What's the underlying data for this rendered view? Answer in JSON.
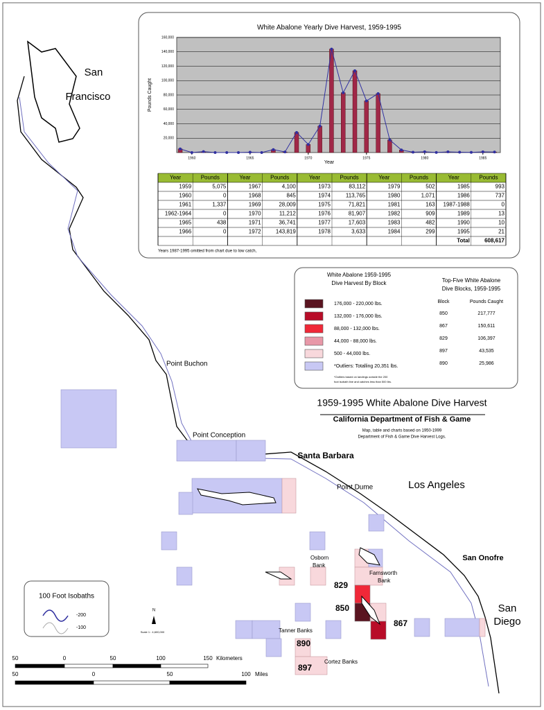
{
  "chart_data": {
    "type": "bar",
    "title": "White Abalone Yearly Dive Harvest, 1959-1995",
    "x_label": "Year",
    "y_label": "Pounds Caught",
    "x": [
      1959,
      1960,
      1961,
      1962,
      1963,
      1964,
      1965,
      1966,
      1967,
      1968,
      1969,
      1970,
      1971,
      1972,
      1973,
      1974,
      1975,
      1976,
      1977,
      1978,
      1979,
      1980,
      1981,
      1982,
      1983,
      1984,
      1985,
      1986
    ],
    "values": [
      5075,
      0,
      1337,
      0,
      0,
      0,
      438,
      0,
      4100,
      845,
      28009,
      11212,
      36741,
      143819,
      83112,
      113765,
      71821,
      81907,
      17603,
      3633,
      502,
      1071,
      163,
      909,
      482,
      299,
      993,
      737
    ],
    "color": "#a02848",
    "line_color": "#3030a0",
    "plot_background": "#c0c0c0",
    "xlim": [
      1958.7,
      1986.5
    ],
    "xticks": [
      1960,
      1965,
      1970,
      1975,
      1980,
      1985
    ],
    "ylim": [
      0,
      160000
    ],
    "yticks": [
      {
        "value": 20000,
        "label": "20,000"
      },
      {
        "value": 40000,
        "label": "40,000"
      },
      {
        "value": 60000,
        "label": "60,000"
      },
      {
        "value": 80000,
        "label": "80,000"
      },
      {
        "value": 100000,
        "label": "100,000"
      },
      {
        "value": 120000,
        "label": "120,000"
      },
      {
        "value": 140000,
        "label": "140,000"
      },
      {
        "value": 160000,
        "label": "160,000"
      }
    ],
    "grid": true
  },
  "table": {
    "header": [
      "Year",
      "Pounds",
      "Year",
      "Pounds",
      "Year",
      "Pounds",
      "Year",
      "Pounds",
      "Year",
      "Pounds"
    ],
    "rows": [
      [
        "1959",
        "5,075",
        "1967",
        "4,100",
        "1973",
        "83,112",
        "1979",
        "502",
        "1985",
        "993"
      ],
      [
        "1960",
        "0",
        "1968",
        "845",
        "1974",
        "113,765",
        "1980",
        "1,071",
        "1986",
        "737"
      ],
      [
        "1961",
        "1,337",
        "1969",
        "28,009",
        "1975",
        "71,821",
        "1981",
        "163",
        "1987-1988",
        "0"
      ],
      [
        "1962-1964",
        "0",
        "1970",
        "11,212",
        "1976",
        "81,907",
        "1982",
        "909",
        "1989",
        "13"
      ],
      [
        "1965",
        "438",
        "1971",
        "36,741",
        "1977",
        "17,603",
        "1983",
        "482",
        "1990",
        "10"
      ],
      [
        "1966",
        "0",
        "1972",
        "143,819",
        "1978",
        "3,633",
        "1984",
        "299",
        "1995",
        "21"
      ]
    ],
    "total_label": "Total",
    "total": "608,617",
    "note": "Years 1987-1995 omitted from chart due to low catch,"
  },
  "legend": {
    "title": [
      "White Abalone 1959-1995",
      "Dive Harvest By Block"
    ],
    "items": [
      {
        "label": "176,000 - 220,000 lbs.",
        "color": "#5a1420"
      },
      {
        "label": "132,000 - 176,000 lbs.",
        "color": "#b80c28"
      },
      {
        "label": "88,000 - 132,000 lbs.",
        "color": "#f02838"
      },
      {
        "label": "44,000 - 88,000 lbs.",
        "color": "#e898a8"
      },
      {
        "label": "500 - 44,000 lbs.",
        "color": "#f8d8dc"
      },
      {
        "label": "*Outliers: Totalling 20,351 lbs.",
        "color": "#c8c8f4"
      }
    ],
    "footnote": [
      "*Outliers based on landings outside the 200",
      "foot isobath line and catches less than 500 lbs."
    ]
  },
  "top_five": {
    "title": [
      "Top-Five White Abalone",
      "Dive Blocks, 1959-1995"
    ],
    "header": [
      "Block",
      "Pounds Caught"
    ],
    "rows": [
      [
        "850",
        "217,777"
      ],
      [
        "867",
        "150,611"
      ],
      [
        "829",
        "106,397"
      ],
      [
        "897",
        "43,535"
      ],
      [
        "890",
        "25,986"
      ]
    ]
  },
  "main_title": "1959-1995 White Abalone Dive Harvest",
  "subtitle": "California Department of Fish & Game",
  "credit": [
    "Map, table and charts based on 1950-1999",
    "Department of Fish & Game Dive Harvest Logs."
  ],
  "cities": [
    "San",
    "Francisco",
    "Santa Barbara",
    "Los Angeles",
    "San Onofre",
    "San",
    "Diego"
  ],
  "features": [
    "Point Buchon",
    "Point Conception",
    "Point Dume",
    "Osborn",
    "Bank",
    "Farnsworth",
    "Bank",
    "Tanner Banks",
    "Cortez Banks"
  ],
  "block_numbers": [
    "829",
    "850",
    "867",
    "890",
    "897"
  ],
  "isobaths": {
    "title": "100 Foot Isobaths",
    "items": [
      "-200",
      "-100"
    ]
  },
  "scale": {
    "ratio": "Scale 1 : 4,600,000",
    "km_labels": [
      "50",
      "0",
      "50",
      "100",
      "150"
    ],
    "km_unit": "Kilometers",
    "mi_labels": [
      "50",
      "0",
      "50",
      "100"
    ],
    "mi_unit": "Miles"
  },
  "north": "N"
}
